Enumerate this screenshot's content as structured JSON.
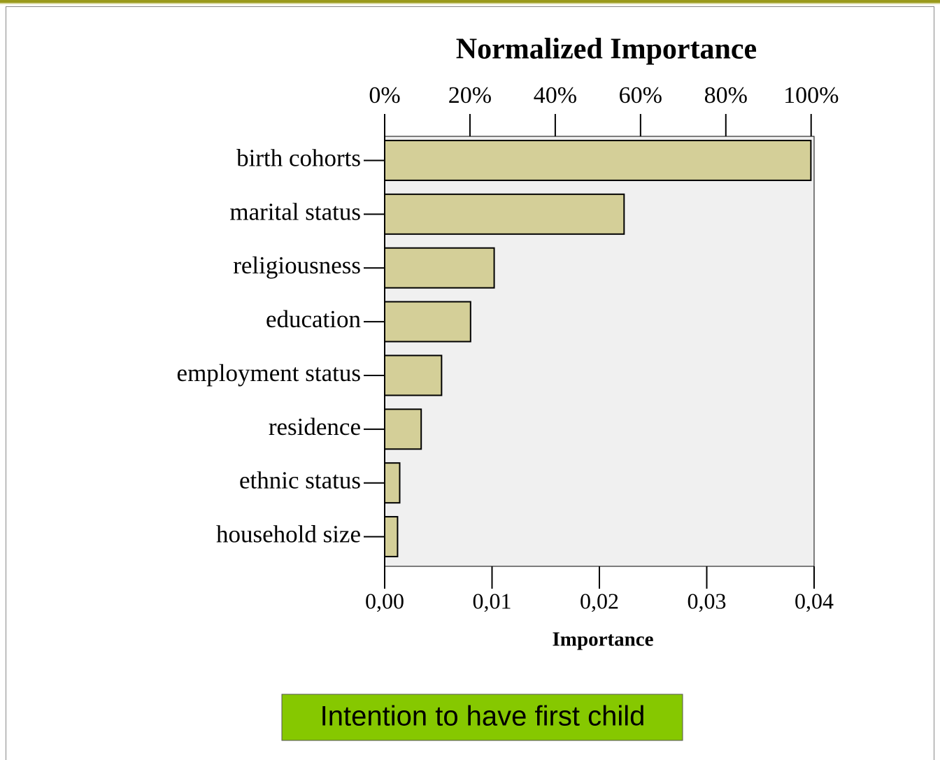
{
  "chart_data": {
    "type": "bar",
    "orientation": "horizontal",
    "x2label": "Normalized Importance",
    "xlabel": "Importance",
    "categories": [
      "birth cohorts",
      "marital status",
      "religiousness",
      "education",
      "employment status",
      "residence",
      "ethnic status",
      "household size"
    ],
    "values": [
      0.0397,
      0.0223,
      0.0102,
      0.008,
      0.0053,
      0.0034,
      0.0014,
      0.0012
    ],
    "color": "#d4cf98",
    "xlim": [
      0,
      0.04
    ],
    "xticks": [
      {
        "value": 0,
        "label": "0,00"
      },
      {
        "value": 0.01,
        "label": "0,01"
      },
      {
        "value": 0.02,
        "label": "0,02"
      },
      {
        "value": 0.03,
        "label": "0,03"
      },
      {
        "value": 0.04,
        "label": "0,04"
      }
    ],
    "x2lim": [
      0,
      100.7
    ],
    "x2ticks": [
      {
        "value": 0,
        "label": "0%"
      },
      {
        "value": 20,
        "label": "20%"
      },
      {
        "value": 40,
        "label": "40%"
      },
      {
        "value": 60,
        "label": "60%"
      },
      {
        "value": 80,
        "label": "80%"
      },
      {
        "value": 100,
        "label": "100%"
      }
    ]
  },
  "caption": "Intention to have first child"
}
